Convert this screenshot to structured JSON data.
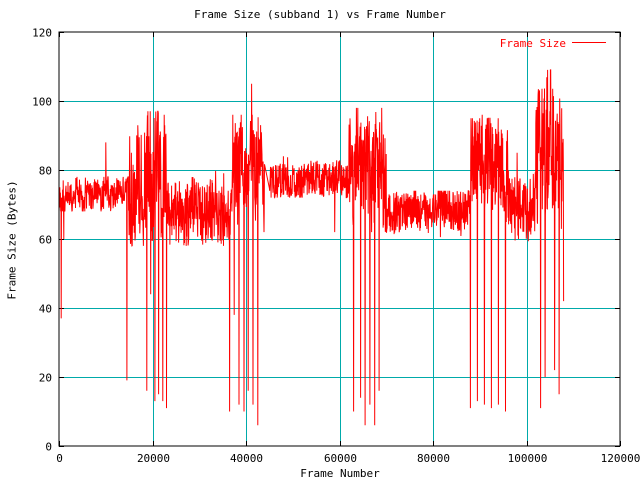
{
  "chart_data": {
    "type": "line",
    "title": "Frame Size (subband 1) vs Frame Number",
    "xlabel": "Frame Number",
    "ylabel": "Frame Size (Bytes)",
    "xlim": [
      0,
      120000
    ],
    "ylim": [
      0,
      120
    ],
    "xticks": [
      0,
      20000,
      40000,
      60000,
      80000,
      100000,
      120000
    ],
    "yticks": [
      0,
      20,
      40,
      60,
      80,
      100,
      120
    ],
    "grid": true,
    "legend_position": "top-right",
    "series": [
      {
        "name": "Frame Size",
        "color": "#ff0000",
        "segments": [
          {
            "x": [
              0,
              1000,
              2000,
              3000,
              4000,
              5000,
              6000,
              7000,
              8000,
              9000,
              10000,
              11000,
              12000,
              13000,
              14000,
              15000
            ],
            "y": [
              72,
              70,
              74,
              71,
              75,
              70,
              73,
              72,
              74,
              71,
              76,
              72,
              73,
              75,
              74,
              78
            ],
            "low": 68,
            "high": 78
          },
          {
            "x": [
              15000,
              16000,
              17000,
              18000,
              19000,
              20000,
              21000,
              22000,
              23000
            ],
            "y": [
              76,
              72,
              80,
              70,
              85,
              75,
              88,
              72,
              80
            ],
            "low": 58,
            "high": 97
          },
          {
            "x": [
              23000,
              25000,
              27000,
              29000,
              31000,
              33000,
              35000,
              37000
            ],
            "y": [
              67,
              68,
              66,
              70,
              67,
              69,
              66,
              65
            ],
            "low": 58,
            "high": 80
          },
          {
            "x": [
              37000,
              38000,
              39000,
              40000,
              41000,
              42000,
              43000,
              44000
            ],
            "y": [
              85,
              82,
              88,
              80,
              90,
              78,
              85,
              70
            ],
            "low": 62,
            "high": 96
          },
          {
            "x": [
              45000,
              48000,
              51000,
              54000,
              57000,
              60000,
              62000
            ],
            "y": [
              76,
              77,
              76,
              78,
              77,
              78,
              76
            ],
            "low": 72,
            "high": 84
          },
          {
            "x": [
              62000,
              63000,
              64000,
              65000,
              66000,
              67000,
              68000,
              69000,
              70000
            ],
            "y": [
              82,
              78,
              86,
              76,
              84,
              74,
              88,
              80,
              72
            ],
            "low": 62,
            "high": 98
          },
          {
            "x": [
              70000,
              73000,
              76000,
              79000,
              82000,
              85000,
              88000
            ],
            "y": [
              67,
              68,
              69,
              67,
              70,
              68,
              69
            ],
            "low": 60,
            "high": 74
          },
          {
            "x": [
              88000,
              89000,
              90000,
              91000,
              92000,
              93000,
              94000,
              95000,
              96000
            ],
            "y": [
              84,
              80,
              88,
              78,
              86,
              76,
              85,
              80,
              74
            ],
            "low": 62,
            "high": 95
          },
          {
            "x": [
              96000,
              98000,
              100000,
              102000
            ],
            "y": [
              72,
              70,
              68,
              70
            ],
            "low": 57,
            "high": 80
          },
          {
            "x": [
              102000,
              103000,
              104000,
              105000,
              106000,
              107000,
              108000
            ],
            "y": [
              80,
              86,
              84,
              95,
              82,
              88,
              78
            ],
            "low": 60,
            "high": 109
          }
        ],
        "dips": [
          {
            "x": 500,
            "y": 37
          },
          {
            "x": 1000,
            "y": 60
          },
          {
            "x": 14500,
            "y": 19
          },
          {
            "x": 18800,
            "y": 16
          },
          {
            "x": 19600,
            "y": 44
          },
          {
            "x": 20500,
            "y": 13
          },
          {
            "x": 21300,
            "y": 15
          },
          {
            "x": 22200,
            "y": 13
          },
          {
            "x": 23000,
            "y": 11
          },
          {
            "x": 36500,
            "y": 10
          },
          {
            "x": 37500,
            "y": 38
          },
          {
            "x": 38500,
            "y": 12
          },
          {
            "x": 39600,
            "y": 10
          },
          {
            "x": 40500,
            "y": 16
          },
          {
            "x": 41500,
            "y": 12
          },
          {
            "x": 42500,
            "y": 6
          },
          {
            "x": 59000,
            "y": 62
          },
          {
            "x": 63000,
            "y": 10
          },
          {
            "x": 64500,
            "y": 14
          },
          {
            "x": 65500,
            "y": 6
          },
          {
            "x": 66500,
            "y": 12
          },
          {
            "x": 67500,
            "y": 6
          },
          {
            "x": 68500,
            "y": 16
          },
          {
            "x": 88000,
            "y": 11
          },
          {
            "x": 89500,
            "y": 13
          },
          {
            "x": 91000,
            "y": 12
          },
          {
            "x": 92500,
            "y": 11
          },
          {
            "x": 94000,
            "y": 12
          },
          {
            "x": 95500,
            "y": 10
          },
          {
            "x": 103000,
            "y": 11
          },
          {
            "x": 104000,
            "y": 20
          },
          {
            "x": 106000,
            "y": 22
          },
          {
            "x": 107000,
            "y": 15
          },
          {
            "x": 108000,
            "y": 42
          }
        ],
        "peaks": [
          {
            "x": 10000,
            "y": 88
          },
          {
            "x": 15500,
            "y": 85
          },
          {
            "x": 19500,
            "y": 97
          },
          {
            "x": 22500,
            "y": 96
          },
          {
            "x": 37200,
            "y": 96
          },
          {
            "x": 41200,
            "y": 105
          },
          {
            "x": 48000,
            "y": 84
          },
          {
            "x": 64500,
            "y": 92
          },
          {
            "x": 69000,
            "y": 98
          },
          {
            "x": 90500,
            "y": 96
          },
          {
            "x": 98000,
            "y": 85
          },
          {
            "x": 104500,
            "y": 109
          }
        ]
      }
    ]
  }
}
